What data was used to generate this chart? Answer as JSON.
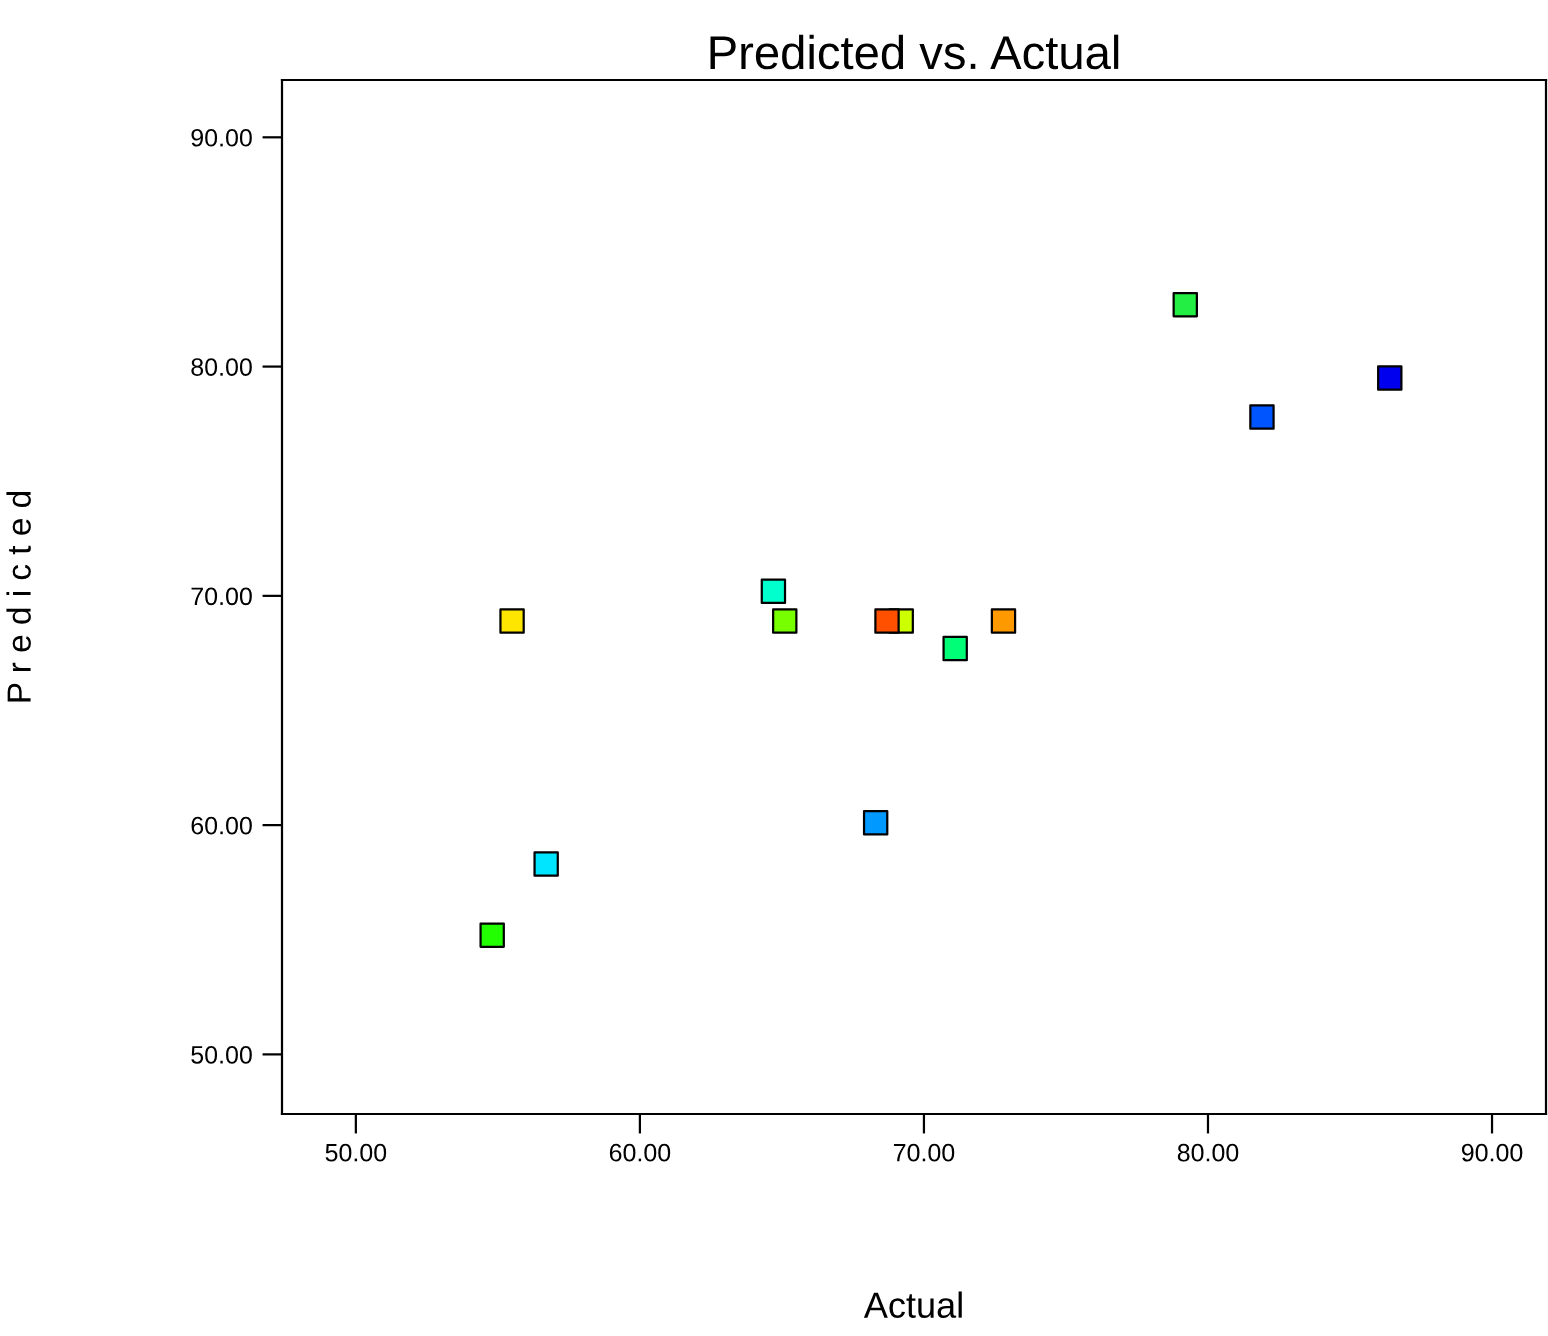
{
  "chart_data": {
    "type": "scatter",
    "title": "Predicted vs. Actual",
    "xlabel": "Actual",
    "ylabel": "P r e d i c t e d",
    "x": [
      55.5,
      64.7,
      65.1,
      68.7,
      69.2,
      71.1,
      72.8,
      79.2,
      81.9,
      86.4,
      68.3,
      56.7,
      54.8
    ],
    "series": [
      {
        "values": [
          68.9,
          70.2,
          68.9,
          68.9,
          68.9,
          67.7,
          68.9,
          82.7,
          77.8,
          79.5,
          60.1,
          58.3,
          55.2
        ],
        "colors": [
          "#ffe600",
          "#00ffcc",
          "#77ff00",
          "#ff5000",
          "#ccff00",
          "#00ff77",
          "#ff9900",
          "#22ee44",
          "#0055ff",
          "#0000ee",
          "#0099ff",
          "#00e5ff",
          "#22ff00"
        ]
      }
    ],
    "marker": "square",
    "grid": false,
    "legend": false,
    "xlim": [
      47.4,
      91.9
    ],
    "ylim": [
      47.4,
      92.5
    ],
    "xticks": [
      {
        "value": 50,
        "label": "50.00"
      },
      {
        "value": 60,
        "label": "60.00"
      },
      {
        "value": 70,
        "label": "70.00"
      },
      {
        "value": 80,
        "label": "80.00"
      },
      {
        "value": 90,
        "label": "90.00"
      }
    ],
    "yticks": [
      {
        "value": 50,
        "label": "50.00"
      },
      {
        "value": 60,
        "label": "60.00"
      },
      {
        "value": 70,
        "label": "70.00"
      },
      {
        "value": 80,
        "label": "80.00"
      },
      {
        "value": 90,
        "label": "90.00"
      }
    ]
  }
}
